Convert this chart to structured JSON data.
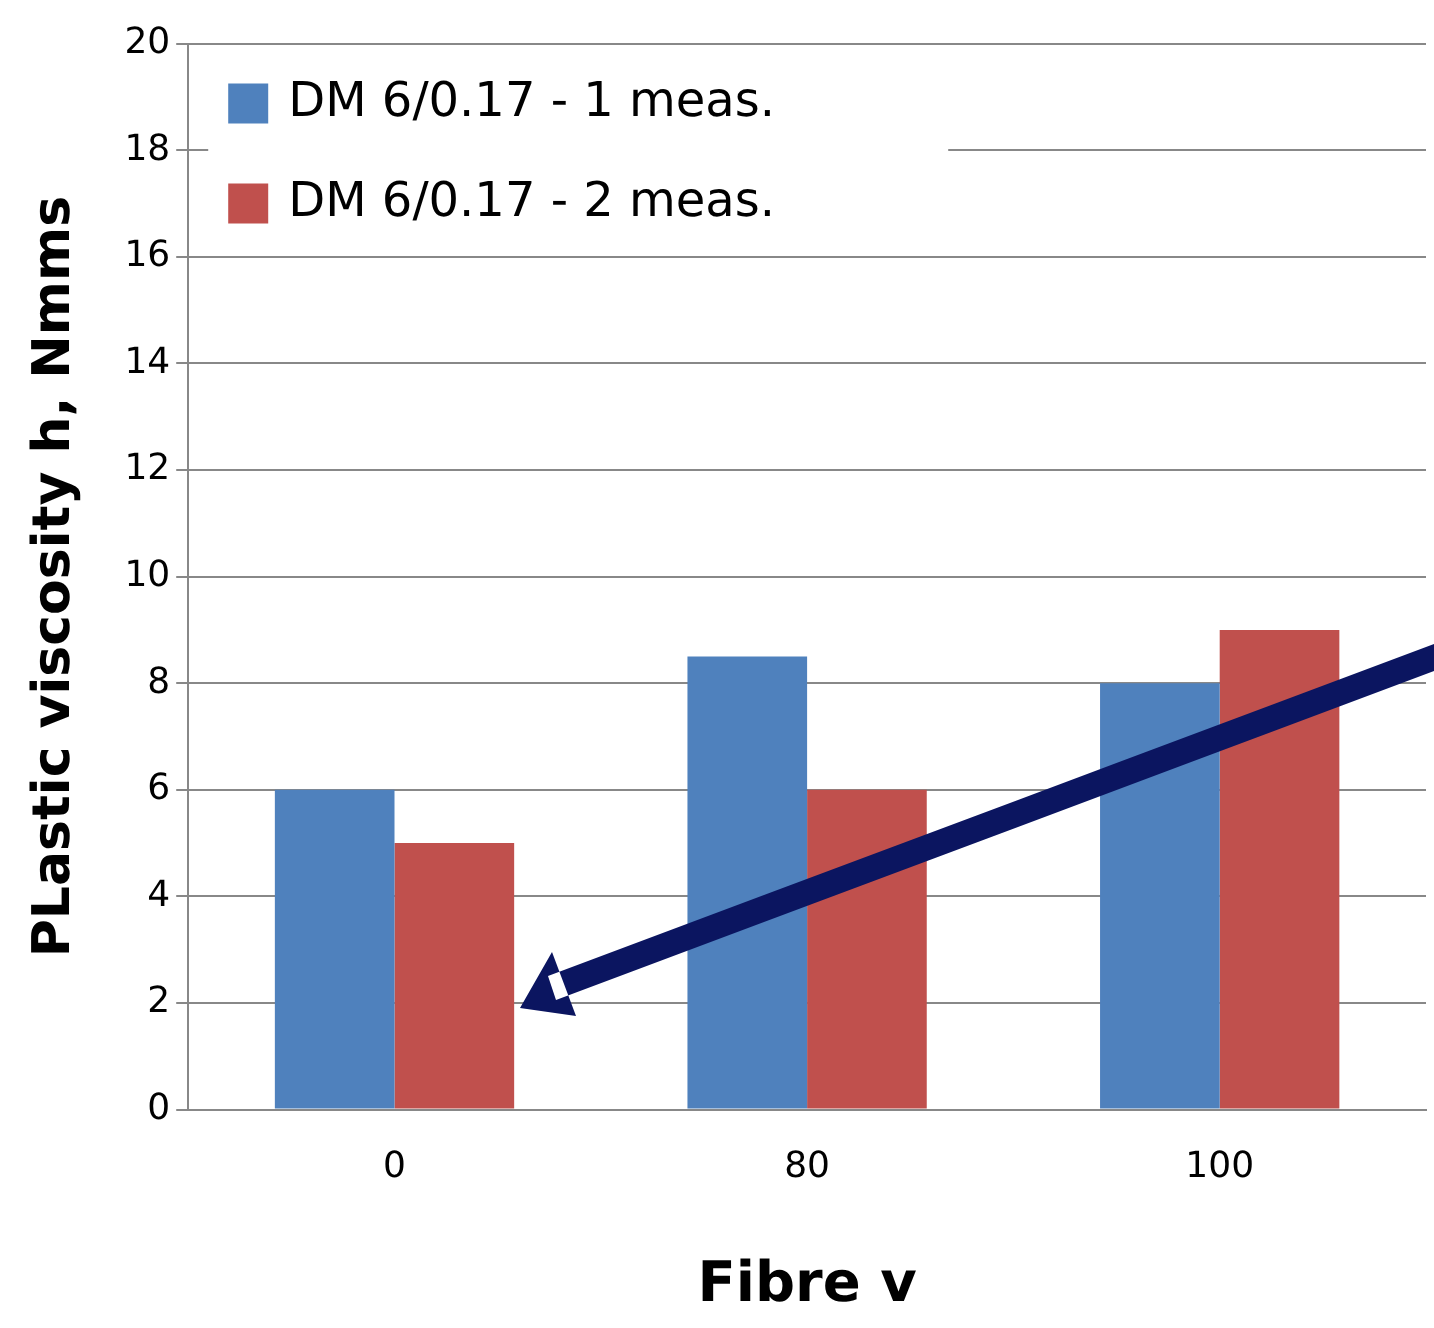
{
  "chart_data": {
    "type": "bar",
    "xlabel": "Fibre v",
    "ylabel": "PLastic viscosity h, Nmms",
    "categories": [
      "0",
      "80",
      "100"
    ],
    "series": [
      {
        "name": "DM 6/0.17 - 1 meas.",
        "color": "#4f81bd",
        "values": [
          6,
          8.5,
          8
        ]
      },
      {
        "name": "DM 6/0.17 - 2 meas.",
        "color": "#c0504d",
        "values": [
          5,
          6,
          9
        ]
      }
    ],
    "ylim": [
      0,
      20
    ],
    "yticks": [
      0,
      2,
      4,
      6,
      8,
      10,
      12,
      14,
      16,
      18,
      20
    ],
    "grid": "y",
    "legend": "top left"
  }
}
